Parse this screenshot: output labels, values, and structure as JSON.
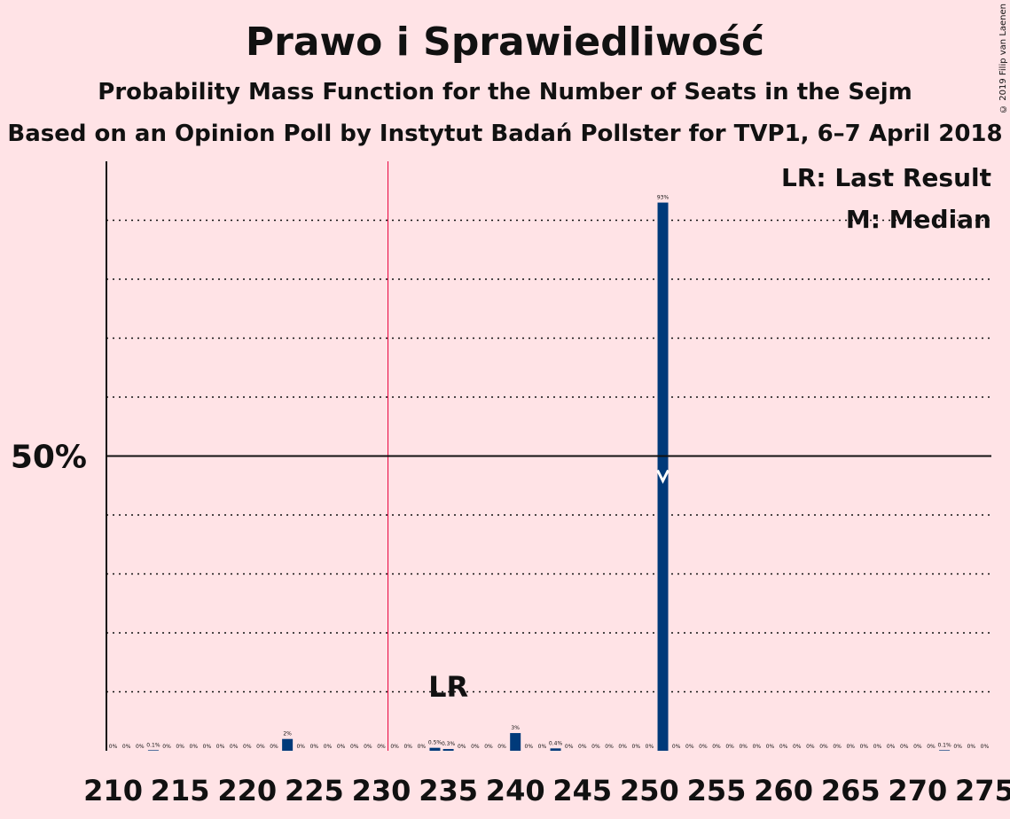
{
  "title": "Prawo i Sprawiedliwość",
  "subtitle": "Probability Mass Function for the Number of Seats in the Sejm",
  "subtitle2": "Based on an Opinion Poll by Instytut Badań Pollster for TVP1, 6–7 April 2018",
  "copyright": "© 2019 Filip van Laenen",
  "legend": {
    "lr": "LR: Last Result",
    "m": "M: Median"
  },
  "lr_label": "LR",
  "colors": {
    "background": "#ffe3e6",
    "bar": "#003a7a",
    "lr_line": "#e8003c"
  },
  "chart_data": {
    "type": "bar",
    "x_start": 210,
    "x_end": 275,
    "x_ticks": [
      210,
      215,
      220,
      225,
      230,
      235,
      240,
      245,
      250,
      255,
      260,
      265,
      270,
      275
    ],
    "ylim": [
      0,
      100
    ],
    "y_tick_label": "50%",
    "y_tick_value": 50,
    "grid_values": [
      10,
      20,
      30,
      40,
      60,
      70,
      80,
      90
    ],
    "last_result": 231,
    "median": 251,
    "values": [
      0,
      0,
      0,
      0.1,
      0,
      0,
      0,
      0,
      0,
      0,
      0,
      0,
      0,
      2,
      0,
      0,
      0,
      0,
      0,
      0,
      0,
      0,
      0,
      0,
      0.5,
      0.3,
      0,
      0,
      0,
      0,
      3,
      0,
      0,
      0.4,
      0,
      0,
      0,
      0,
      0,
      0,
      0,
      93,
      0,
      0,
      0,
      0,
      0,
      0,
      0,
      0,
      0,
      0,
      0,
      0,
      0,
      0,
      0,
      0,
      0,
      0,
      0,
      0,
      0.1,
      0,
      0,
      0
    ],
    "labels": [
      "0%",
      "0%",
      "0%",
      "0.1%",
      "0%",
      "0%",
      "0%",
      "0%",
      "0%",
      "0%",
      "0%",
      "0%",
      "0%",
      "2%",
      "0%",
      "0%",
      "0%",
      "0%",
      "0%",
      "0%",
      "0%",
      "0%",
      "0%",
      "0%",
      "0.5%",
      "0.3%",
      "0%",
      "0%",
      "0%",
      "0%",
      "3%",
      "0%",
      "0%",
      "0.4%",
      "0%",
      "0%",
      "0%",
      "0%",
      "0%",
      "0%",
      "0%",
      "93%",
      "0%",
      "0%",
      "0%",
      "0%",
      "0%",
      "0%",
      "0%",
      "0%",
      "0%",
      "0%",
      "0%",
      "0%",
      "0%",
      "0%",
      "0%",
      "0%",
      "0%",
      "0%",
      "0%",
      "0%",
      "0.1%",
      "0%",
      "0%",
      "0%"
    ]
  }
}
